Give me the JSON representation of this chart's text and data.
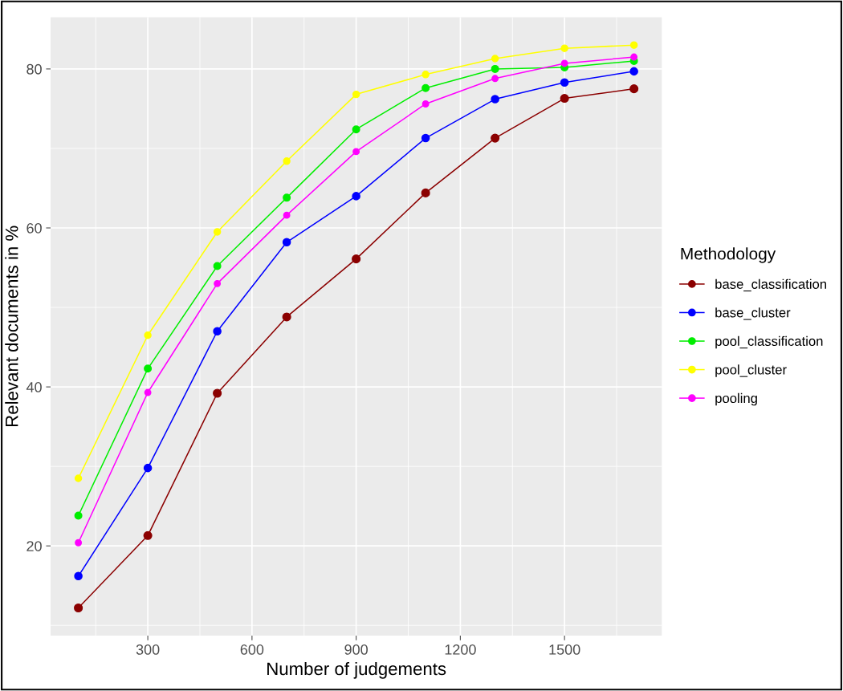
{
  "chart_data": {
    "type": "line",
    "xlabel": "Number of judgements",
    "ylabel": "Relevant documents in %",
    "legend_title": "Methodology",
    "x": [
      100,
      300,
      500,
      700,
      900,
      1100,
      1300,
      1500,
      1700
    ],
    "series": [
      {
        "name": "base_classification",
        "color": "#8b0000",
        "values": [
          12.2,
          21.3,
          39.2,
          48.8,
          56.1,
          64.4,
          71.3,
          76.3,
          77.5
        ]
      },
      {
        "name": "base_cluster",
        "color": "#0000ff",
        "values": [
          16.2,
          29.8,
          47.0,
          58.2,
          64.0,
          71.3,
          76.2,
          78.3,
          79.7
        ]
      },
      {
        "name": "pool_classification",
        "color": "#00ee00",
        "values": [
          23.8,
          42.3,
          55.2,
          63.8,
          72.4,
          77.6,
          80.0,
          80.2,
          81.0
        ]
      },
      {
        "name": "pool_cluster",
        "color": "#ffff00",
        "values": [
          28.5,
          46.5,
          59.5,
          68.4,
          76.8,
          79.3,
          81.3,
          82.6,
          83.0
        ]
      },
      {
        "name": "pooling",
        "color": "#ff00ff",
        "values": [
          20.4,
          39.3,
          53.0,
          61.6,
          69.6,
          75.6,
          78.8,
          80.7,
          81.5
        ]
      }
    ],
    "xlim": [
      20,
      1780
    ],
    "xticks": [
      300,
      600,
      900,
      1200,
      1500
    ],
    "ylim": [
      8.7,
      86.5
    ],
    "yticks": [
      20,
      40,
      60,
      80
    ],
    "grid": true,
    "legend": "right",
    "marker": "circle",
    "line_style": "solid"
  }
}
